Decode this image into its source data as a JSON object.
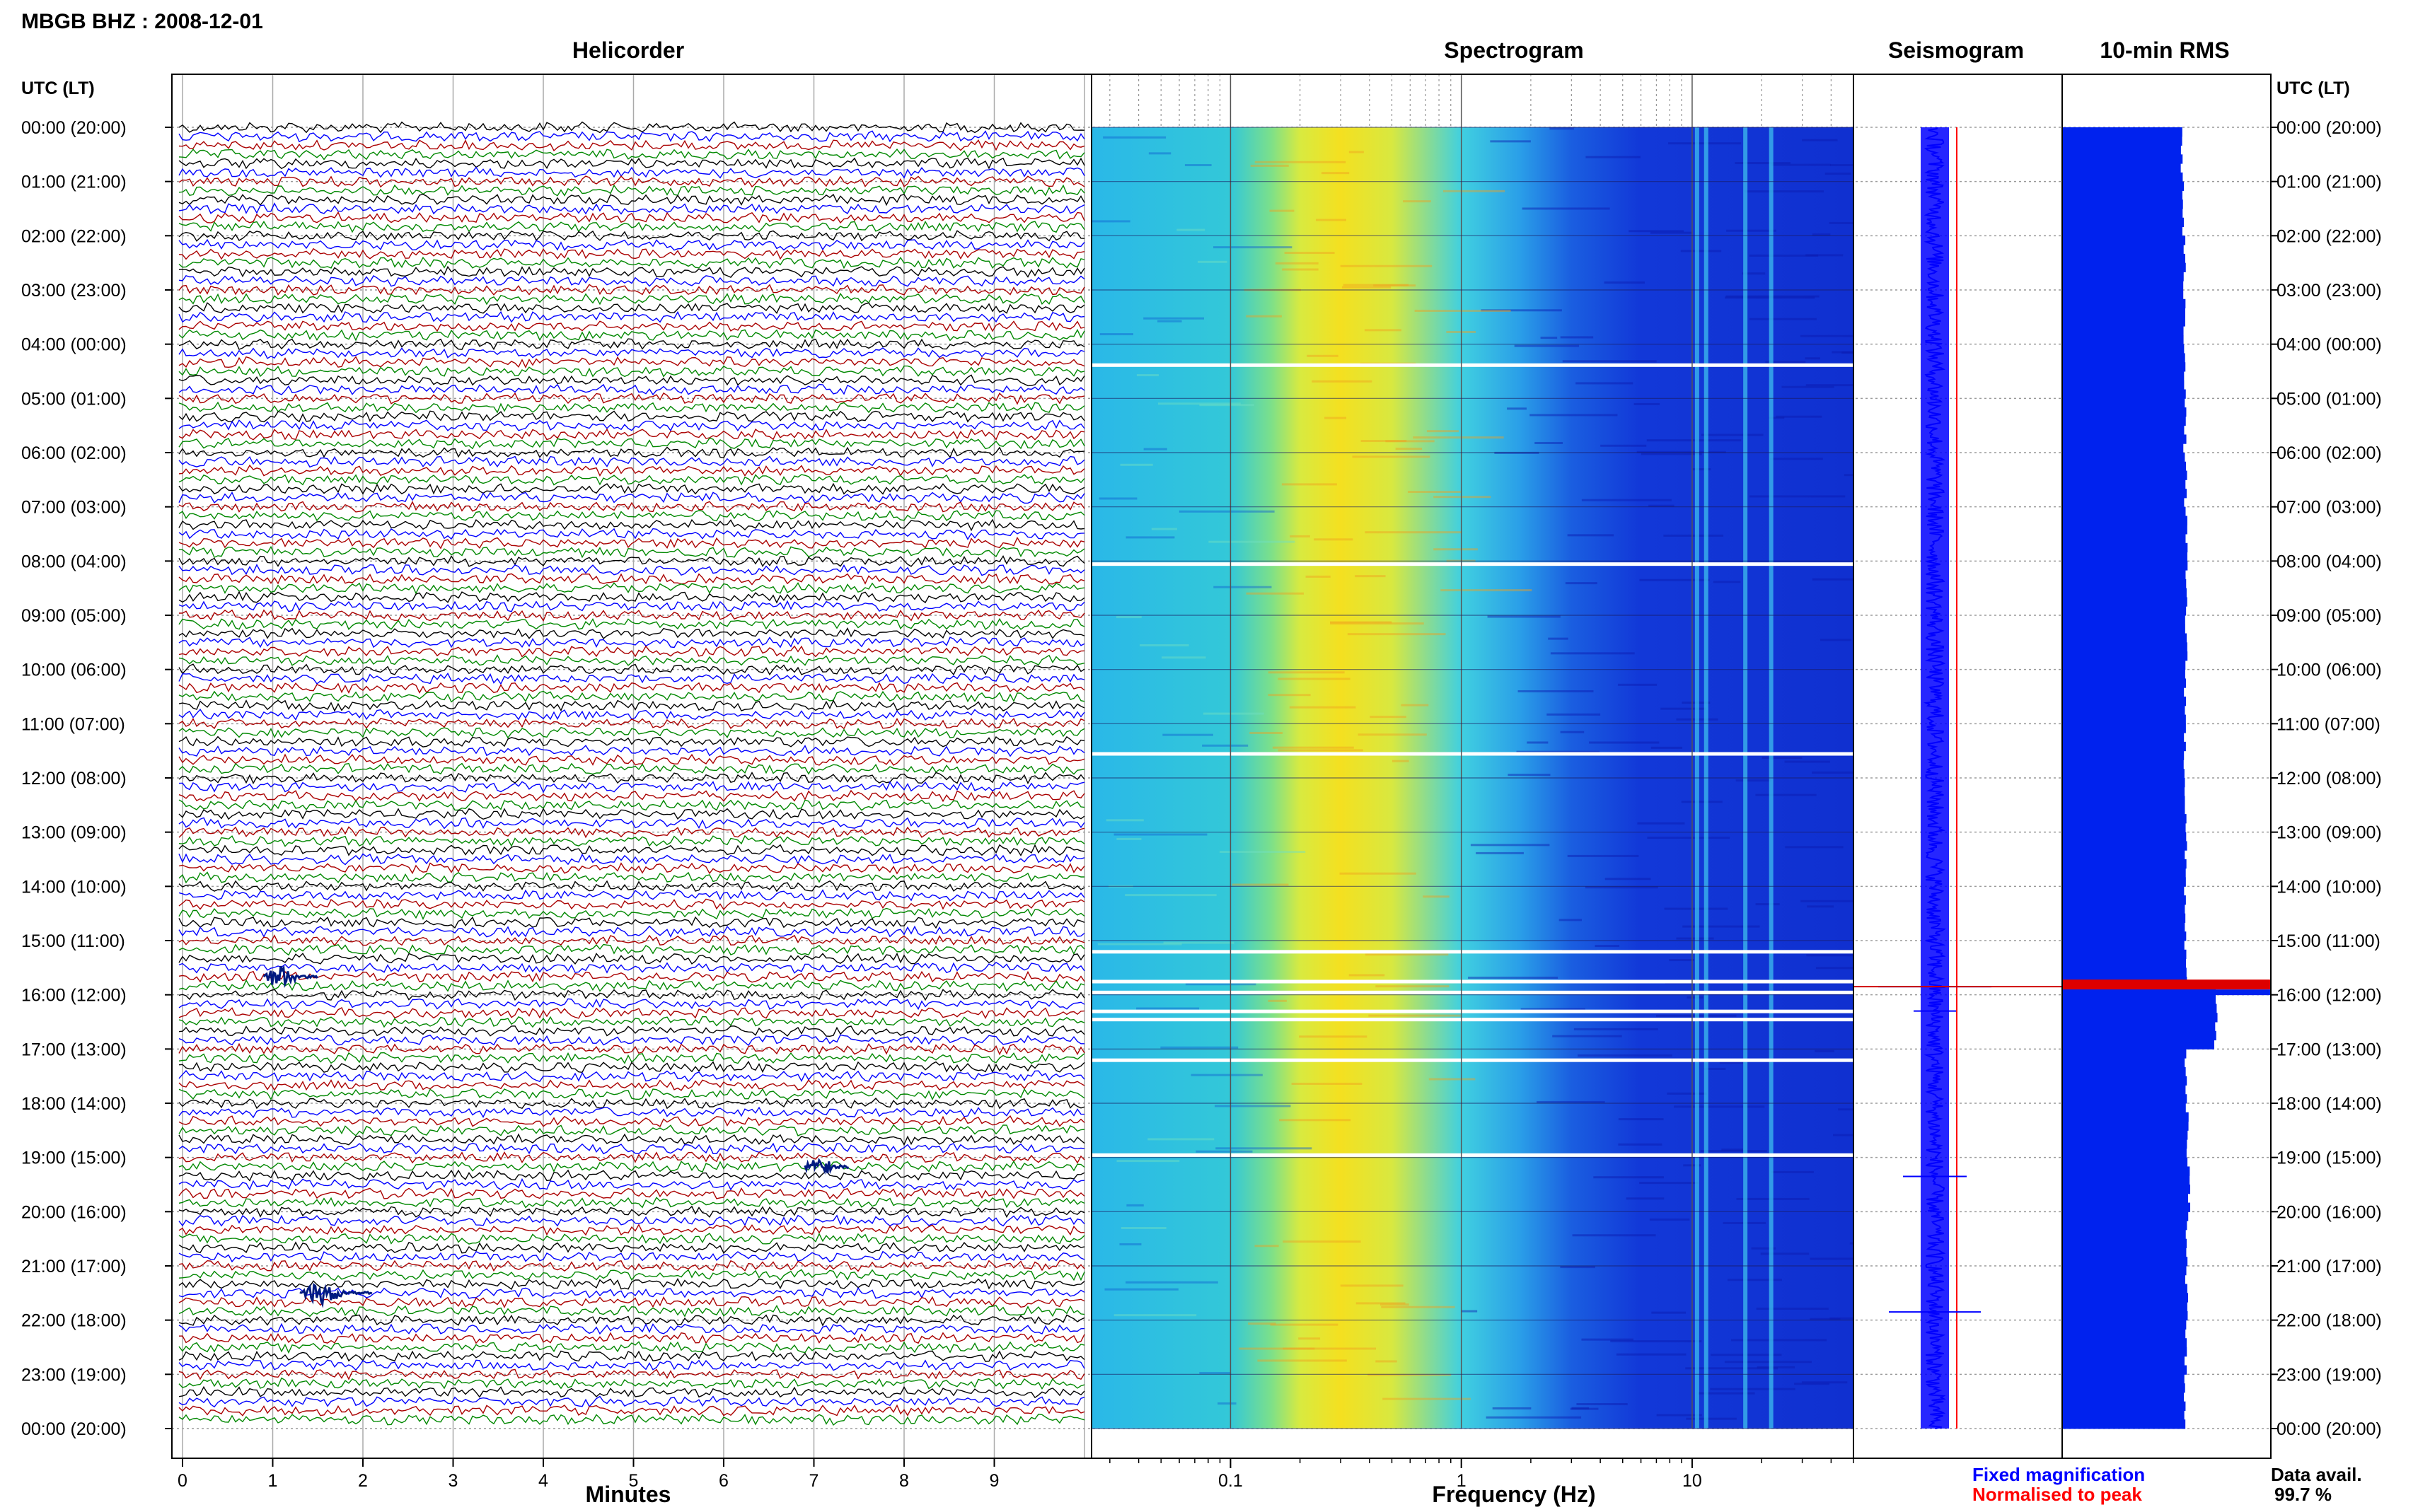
{
  "header": {
    "station_title": "MBGB BHZ : 2008-12-01"
  },
  "panels": {
    "helicorder": "Helicorder",
    "spectrogram": "Spectrogram",
    "seismogram": "Seismogram",
    "rms": "10-min RMS"
  },
  "axis_headers": {
    "left": "UTC (LT)",
    "right": "UTC (LT)"
  },
  "legend": {
    "fixed": "Fixed magnification",
    "normalised": "Normalised to peak"
  },
  "availability": {
    "label": "Data avail.",
    "value": "99.7 %"
  },
  "colors": {
    "trace_cycle": [
      "#000000",
      "#0000ff",
      "#aa0000",
      "#008800"
    ],
    "seismogram_fixed": "#0000ff",
    "seismogram_normalised": "#ff0000",
    "rms_bar": "#0022ee",
    "rms_peak": "#dd0000",
    "spectrogram_low": "#1030d0",
    "spectrogram_mid": "#30d0e0",
    "spectrogram_high": "#f0f020"
  },
  "chart_data": [
    {
      "type": "line",
      "name": "helicorder",
      "xlabel": "Minutes",
      "xlim": [
        0,
        10
      ],
      "x_ticks": [
        "0",
        "1",
        "2",
        "3",
        "4",
        "5",
        "6",
        "7",
        "8",
        "9"
      ],
      "x_tick_values": [
        0,
        1,
        2,
        3,
        4,
        5,
        6,
        7,
        8,
        9
      ],
      "row_minutes": 10,
      "rows": 144,
      "time_labels": [
        "00:00 (20:00)",
        "01:00 (21:00)",
        "02:00 (22:00)",
        "03:00 (23:00)",
        "04:00 (00:00)",
        "05:00 (01:00)",
        "06:00 (02:00)",
        "07:00 (03:00)",
        "08:00 (04:00)",
        "09:00 (05:00)",
        "10:00 (06:00)",
        "11:00 (07:00)",
        "12:00 (08:00)",
        "13:00 (09:00)",
        "14:00 (10:00)",
        "15:00 (11:00)",
        "16:00 (12:00)",
        "17:00 (13:00)",
        "18:00 (14:00)",
        "19:00 (15:00)",
        "20:00 (16:00)",
        "21:00 (17:00)",
        "22:00 (18:00)",
        "23:00 (19:00)",
        "00:00 (20:00)"
      ],
      "events": [
        {
          "hour": 15.67,
          "minute": 0.9,
          "duration_min": 0.6
        },
        {
          "hour": 19.17,
          "minute": 6.9,
          "duration_min": 0.5
        },
        {
          "hour": 21.5,
          "minute": 1.3,
          "duration_min": 0.8
        }
      ]
    },
    {
      "type": "heatmap",
      "name": "spectrogram",
      "xlabel": "Frequency (Hz)",
      "x_scale": "log",
      "xlim": [
        0.025,
        50
      ],
      "x_ticks": [
        "0.1",
        "1",
        "10"
      ],
      "x_tick_values": [
        0.1,
        1,
        10
      ],
      "peak_frequency_hz": 0.3,
      "spectral_lines_hz": [
        10.5,
        11.5,
        17,
        22
      ],
      "gap_hours": [
        4.38,
        8.05,
        11.55,
        15.2,
        15.75,
        15.95,
        16.3,
        16.45,
        17.2,
        18.95
      ]
    },
    {
      "type": "line",
      "name": "seismogram",
      "series": [
        {
          "name": "Fixed magnification"
        },
        {
          "name": "Normalised to peak"
        }
      ]
    },
    {
      "type": "bar",
      "name": "10-min RMS",
      "orientation": "horizontal",
      "relative_values_by_hour": [
        0.46,
        0.48,
        0.5,
        0.5,
        0.52,
        0.51,
        0.52,
        0.53,
        0.53,
        0.53,
        0.52,
        0.51,
        0.52,
        0.52,
        0.52,
        0.52,
        1.0,
        0.52,
        0.55,
        0.57,
        0.55,
        0.54,
        0.52,
        0.51
      ],
      "peak_hour": 15.85
    }
  ]
}
